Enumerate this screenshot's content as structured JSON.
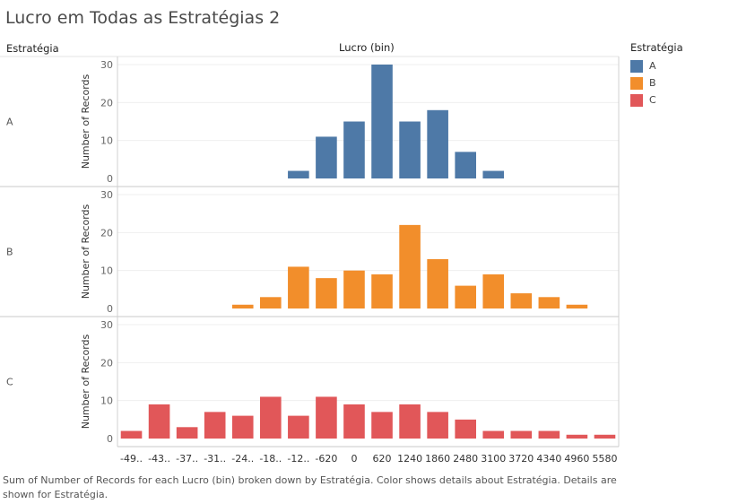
{
  "title": "Lucro em Todas as Estratégias 2",
  "row_header": "Estratégia",
  "col_header": "Lucro (bin)",
  "caption": "Sum of Number of Records for each Lucro (bin) broken down by Estratégia.  Color shows details about Estratégia.  Details are shown for Estratégia.",
  "legend": {
    "title": "Estratégia",
    "items": [
      {
        "label": "A",
        "color": "#4e79a7"
      },
      {
        "label": "B",
        "color": "#f28e2b"
      },
      {
        "label": "C",
        "color": "#e15759"
      }
    ]
  },
  "chart_data": {
    "type": "bar",
    "categories": [
      "-49..",
      "-43..",
      "-37..",
      "-31..",
      "-24..",
      "-18..",
      "-12..",
      "-620",
      "0",
      "620",
      "1240",
      "1860",
      "2480",
      "3100",
      "3720",
      "4340",
      "4960",
      "5580"
    ],
    "ylabel": "Number of Records",
    "ylim": [
      0,
      30
    ],
    "yticks": [
      0,
      10,
      20,
      30
    ],
    "series": [
      {
        "name": "A",
        "color": "#4e79a7",
        "values": [
          0,
          0,
          0,
          0,
          0,
          0,
          2,
          11,
          15,
          30,
          15,
          18,
          7,
          2,
          0,
          0,
          0,
          0
        ]
      },
      {
        "name": "B",
        "color": "#f28e2b",
        "values": [
          0,
          0,
          0,
          0,
          1,
          3,
          11,
          8,
          10,
          9,
          22,
          13,
          6,
          9,
          4,
          3,
          1,
          0
        ]
      },
      {
        "name": "C",
        "color": "#e15759",
        "values": [
          2,
          9,
          3,
          7,
          6,
          11,
          6,
          11,
          9,
          7,
          9,
          7,
          5,
          2,
          2,
          2,
          1,
          1
        ]
      }
    ]
  }
}
